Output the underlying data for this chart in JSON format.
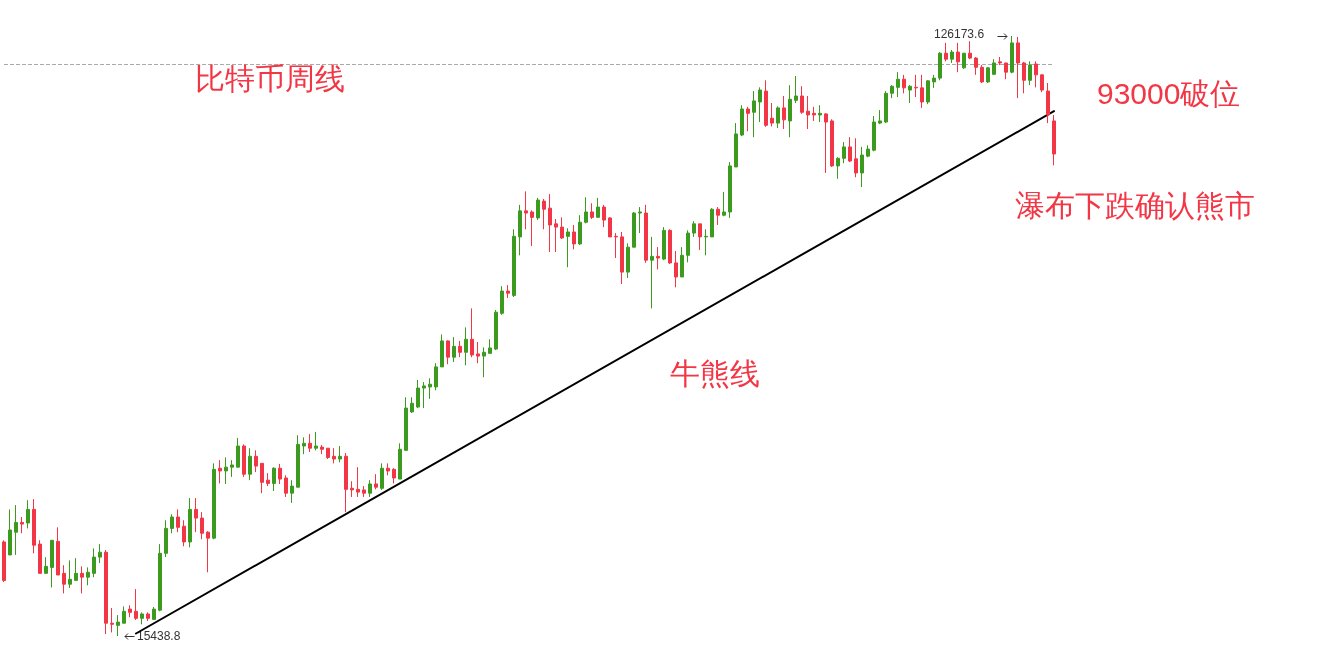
{
  "chart_data": {
    "type": "candlestick",
    "title": "比特币周线",
    "annotations": [
      "牛熊线",
      "93000破位",
      "瀑布下跌确认熊市",
      "126173.6",
      "15438.8"
    ],
    "colors": [
      "#f23645",
      "#3c9b1f",
      "#3c9b1f",
      "#f23645",
      "#3c9b1f",
      "#f23645",
      "#f23645",
      "#3c9b1f",
      "#3c9b1f",
      "#f23645",
      "#f23645",
      "#3c9b1f",
      "#3c9b1f",
      "#f23645",
      "#3c9b1f",
      "#3c9b1f",
      "#3c9b1f",
      "#f23645",
      "#f23645",
      "#3c9b1f",
      "#3c9b1f",
      "#f23645",
      "#f23645",
      "#3c9b1f",
      "#f23645",
      "#3c9b1f",
      "#3c9b1f",
      "#3c9b1f",
      "#3c9b1f",
      "#f23645",
      "#f23645",
      "#3c9b1f",
      "#f23645",
      "#f23645",
      "#f23645",
      "#3c9b1f",
      "#f23645",
      "#3c9b1f",
      "#3c9b1f",
      "#3c9b1f",
      "#f23645",
      "#3c9b1f",
      "#f23645",
      "#f23645",
      "#f23645",
      "#3c9b1f",
      "#f23645",
      "#f23645",
      "#3c9b1f",
      "#3c9b1f",
      "#3c9b1f",
      "#f23645",
      "#3c9b1f",
      "#f23645",
      "#f23645",
      "#f23645",
      "#3c9b1f",
      "#f23645",
      "#f23645",
      "#f23645",
      "#f23645",
      "#3c9b1f",
      "#f23645",
      "#3c9b1f",
      "#f23645",
      "#f23645",
      "#3c9b1f",
      "#3c9b1f",
      "#3c9b1f",
      "#3c9b1f",
      "#3c9b1f",
      "#3c9b1f",
      "#3c9b1f",
      "#3c9b1f",
      "#f23645",
      "#3c9b1f",
      "#f23645",
      "#3c9b1f",
      "#f23645",
      "#f23645",
      "#3c9b1f",
      "#3c9b1f",
      "#3c9b1f",
      "#3c9b1f",
      "#f23645",
      "#3c9b1f",
      "#3c9b1f",
      "#f23645",
      "#f23645",
      "#3c9b1f",
      "#f23645",
      "#f23645",
      "#f23645",
      "#f23645",
      "#3c9b1f",
      "#f23645",
      "#3c9b1f",
      "#3c9b1f",
      "#f23645",
      "#3c9b1f",
      "#f23645",
      "#f23645",
      "#f23645",
      "#f23645",
      "#3c9b1f",
      "#3c9b1f",
      "#3c9b1f",
      "#f23645",
      "#3c9b1f",
      "#f23645",
      "#3c9b1f",
      "#f23645",
      "#f23645",
      "#3c9b1f",
      "#3c9b1f",
      "#3c9b1f",
      "#f23645",
      "#3c9b1f",
      "#3c9b1f",
      "#f23645",
      "#3c9b1f",
      "#3c9b1f",
      "#3c9b1f",
      "#3c9b1f",
      "#f23645",
      "#3c9b1f",
      "#3c9b1f",
      "#f23645",
      "#f23645",
      "#3c9b1f",
      "#f23645",
      "#3c9b1f",
      "#3c9b1f",
      "#f23645",
      "#f23645",
      "#f23645",
      "#3c9b1f",
      "#f23645",
      "#f23645",
      "#3c9b1f",
      "#3c9b1f",
      "#f23645",
      "#f23645",
      "#3c9b1f",
      "#3c9b1f",
      "#3c9b1f",
      "#3c9b1f",
      "#3c9b1f",
      "#3c9b1f",
      "#3c9b1f",
      "#f23645",
      "#3c9b1f",
      "#f23645",
      "#f23645",
      "#3c9b1f",
      "#3c9b1f",
      "#3c9b1f",
      "#f23645",
      "#3c9b1f",
      "#f23645",
      "#3c9b1f",
      "#f23645",
      "#f23645",
      "#f23645",
      "#3c9b1f",
      "#3c9b1f",
      "#f23645",
      "#f23645",
      "#3c9b1f",
      "#f23645",
      "#f23645",
      "#3c9b1f",
      "#f23645",
      "#f23645",
      "#f23645",
      "#f23645"
    ],
    "categories": [
      null,
      null,
      null,
      null,
      null,
      null,
      null,
      null,
      null,
      null,
      null,
      null,
      null,
      null,
      null,
      null,
      null,
      null,
      null,
      null,
      null,
      null,
      null,
      null,
      null,
      null,
      null,
      null,
      null,
      null,
      null,
      null,
      null,
      null,
      null,
      null,
      null,
      null,
      null,
      null,
      null,
      null,
      null,
      null,
      null,
      null,
      null,
      null,
      null,
      null,
      null,
      null,
      null,
      null,
      null,
      null,
      null,
      null,
      null,
      null,
      null,
      null,
      null,
      null,
      null,
      null,
      null,
      null,
      null,
      null,
      null,
      null,
      null,
      null,
      null,
      null,
      null,
      null,
      null,
      null,
      null,
      null,
      null,
      null,
      null,
      null,
      null,
      null,
      null,
      null,
      null,
      null,
      null,
      null,
      null,
      null,
      null,
      null,
      null,
      null,
      null,
      null,
      null,
      null,
      null,
      null,
      null,
      null,
      null,
      null,
      null,
      null,
      null,
      null,
      null,
      null,
      null,
      null,
      null,
      null,
      null,
      null,
      null,
      null,
      null,
      null,
      null,
      null,
      null,
      null,
      null,
      null,
      null,
      null,
      null,
      null,
      null,
      null,
      null,
      null,
      null,
      null,
      null,
      null,
      null,
      null,
      null,
      null,
      null,
      null,
      null,
      null,
      null,
      null,
      null,
      null,
      null,
      null,
      null,
      null,
      null,
      null,
      null,
      null,
      null,
      null,
      null,
      null,
      null,
      null,
      null,
      null,
      null,
      null,
      null,
      null
    ],
    "ohlc": [
      [
        32800,
        33100,
        25400,
        25700
      ],
      [
        30400,
        38800,
        30400,
        35000
      ],
      [
        34600,
        39600,
        30400,
        36400
      ],
      [
        36400,
        37400,
        34400,
        36100
      ],
      [
        36300,
        40500,
        35300,
        38800
      ],
      [
        38800,
        40700,
        30700,
        32200
      ],
      [
        32400,
        33100,
        27000,
        27000
      ],
      [
        27000,
        30000,
        27000,
        28300
      ],
      [
        28100,
        33100,
        24400,
        33100
      ],
      [
        32900,
        35500,
        26700,
        26700
      ],
      [
        27000,
        28500,
        23300,
        25000
      ],
      [
        25000,
        29400,
        24300,
        25900
      ],
      [
        25700,
        29800,
        25700,
        27000
      ],
      [
        27000,
        28300,
        23300,
        26300
      ],
      [
        26300,
        28100,
        24800,
        27200
      ],
      [
        27000,
        31600,
        26300,
        30000
      ],
      [
        30000,
        32400,
        28900,
        30900
      ],
      [
        30900,
        31300,
        15800,
        17800
      ],
      [
        17800,
        20600,
        16100,
        17600
      ],
      [
        17400,
        19300,
        15438.8,
        18000
      ],
      [
        17800,
        20900,
        17800,
        20000
      ],
      [
        20400,
        21100,
        18900,
        19800
      ],
      [
        20000,
        24100,
        18400,
        18700
      ],
      [
        18700,
        19800,
        17600,
        19500
      ],
      [
        19500,
        19800,
        18200,
        18700
      ],
      [
        18500,
        20800,
        18400,
        20400
      ],
      [
        20200,
        32400,
        20000,
        30700
      ],
      [
        30700,
        36800,
        30000,
        35300
      ],
      [
        35300,
        37900,
        34400,
        37400
      ],
      [
        37400,
        38800,
        34600,
        35500
      ],
      [
        35700,
        36800,
        32000,
        32800
      ],
      [
        32800,
        40900,
        31800,
        38800
      ],
      [
        38800,
        40900,
        34600,
        37200
      ],
      [
        37200,
        38300,
        33300,
        34400
      ],
      [
        34600,
        34800,
        27200,
        33500
      ],
      [
        33500,
        47300,
        33300,
        46200
      ],
      [
        46400,
        47900,
        43600,
        45900
      ],
      [
        45900,
        48400,
        43500,
        46600
      ],
      [
        46600,
        47900,
        44800,
        47000
      ],
      [
        46600,
        52000,
        46600,
        50500
      ],
      [
        50500,
        50800,
        44800,
        45300
      ],
      [
        45300,
        50100,
        44200,
        48600
      ],
      [
        48600,
        49700,
        45700,
        46800
      ],
      [
        47300,
        47300,
        41800,
        43800
      ],
      [
        44200,
        45500,
        43100,
        43600
      ],
      [
        43600,
        46600,
        42200,
        46400
      ],
      [
        46400,
        47200,
        43500,
        44400
      ],
      [
        44600,
        45100,
        41100,
        41800
      ],
      [
        41800,
        44200,
        40000,
        43100
      ],
      [
        42900,
        52500,
        42900,
        50800
      ],
      [
        50500,
        52100,
        49000,
        51000
      ],
      [
        51000,
        52700,
        49400,
        50100
      ],
      [
        50100,
        53100,
        49700,
        50500
      ],
      [
        50300,
        50700,
        49000,
        49900
      ],
      [
        50100,
        50100,
        48100,
        48400
      ],
      [
        48600,
        50100,
        47300,
        48100
      ],
      [
        48100,
        50500,
        47500,
        48600
      ],
      [
        48600,
        49200,
        38300,
        42500
      ],
      [
        42700,
        44000,
        41100,
        42400
      ],
      [
        42500,
        46600,
        41100,
        42000
      ],
      [
        42400,
        43100,
        41100,
        41800
      ],
      [
        41800,
        44200,
        41100,
        43500
      ],
      [
        43500,
        45300,
        42500,
        42900
      ],
      [
        42700,
        47300,
        42400,
        46400
      ],
      [
        46400,
        47300,
        45100,
        45900
      ],
      [
        46200,
        46400,
        43600,
        44600
      ],
      [
        44400,
        51000,
        44400,
        49900
      ],
      [
        49700,
        59500,
        49700,
        57500
      ],
      [
        56800,
        59500,
        56600,
        58400
      ],
      [
        57700,
        62700,
        57500,
        61200
      ],
      [
        61200,
        62300,
        57500,
        61600
      ],
      [
        61400,
        63000,
        59200,
        61900
      ],
      [
        61400,
        65800,
        60800,
        65100
      ],
      [
        65100,
        71100,
        65100,
        69900
      ],
      [
        69900,
        70000,
        65600,
        66900
      ],
      [
        66900,
        70600,
        66000,
        68900
      ],
      [
        68900,
        69900,
        66900,
        67800
      ],
      [
        67800,
        72400,
        65400,
        70200
      ],
      [
        70200,
        75900,
        66900,
        67300
      ],
      [
        67500,
        69700,
        65800,
        67100
      ],
      [
        67100,
        68700,
        63200,
        67800
      ],
      [
        67600,
        70200,
        67600,
        68600
      ],
      [
        68400,
        75600,
        68200,
        75200
      ],
      [
        75000,
        80000,
        74700,
        79100
      ],
      [
        79100,
        80200,
        77800,
        78700
      ],
      [
        78300,
        90500,
        78000,
        89200
      ],
      [
        89100,
        95000,
        85700,
        93900
      ],
      [
        93900,
        97500,
        90500,
        93500
      ],
      [
        93700,
        94000,
        87400,
        92700
      ],
      [
        92600,
        96300,
        92200,
        95900
      ],
      [
        95700,
        96100,
        90500,
        94200
      ],
      [
        94400,
        97000,
        86300,
        91300
      ],
      [
        91500,
        92400,
        86300,
        90900
      ],
      [
        90900,
        92700,
        88700,
        88900
      ],
      [
        89200,
        90700,
        83500,
        90000
      ],
      [
        90000,
        91300,
        86800,
        87800
      ],
      [
        87800,
        93100,
        87600,
        91800
      ],
      [
        91800,
        96400,
        91600,
        93700
      ],
      [
        93700,
        95300,
        92400,
        92700
      ],
      [
        92700,
        96300,
        92700,
        94600
      ],
      [
        94600,
        95000,
        90900,
        92200
      ],
      [
        92600,
        92700,
        89100,
        89100
      ],
      [
        89200,
        89800,
        85200,
        89100
      ],
      [
        89100,
        90000,
        80400,
        82600
      ],
      [
        82600,
        87900,
        81500,
        87200
      ],
      [
        87200,
        93700,
        87200,
        93500
      ],
      [
        93500,
        94600,
        89800,
        93700
      ],
      [
        93500,
        95000,
        84300,
        84800
      ],
      [
        84800,
        89100,
        75900,
        85500
      ],
      [
        85500,
        87200,
        83100,
        85200
      ],
      [
        85000,
        90900,
        84800,
        90300
      ],
      [
        90300,
        90500,
        84100,
        84300
      ],
      [
        84300,
        86500,
        79800,
        81700
      ],
      [
        81700,
        87200,
        81700,
        85700
      ],
      [
        85700,
        90300,
        84400,
        89800
      ],
      [
        89800,
        92000,
        89100,
        91500
      ],
      [
        91500,
        91500,
        86700,
        89100
      ],
      [
        89100,
        90500,
        85700,
        89200
      ],
      [
        89100,
        94400,
        89100,
        94200
      ],
      [
        94200,
        94600,
        91300,
        93100
      ],
      [
        93100,
        97400,
        92900,
        93700
      ],
      [
        93700,
        102900,
        92600,
        102200
      ],
      [
        102000,
        110100,
        102000,
        108100
      ],
      [
        107900,
        113400,
        107700,
        112700
      ],
      [
        112700,
        113100,
        108600,
        111900
      ],
      [
        112100,
        116000,
        107500,
        114200
      ],
      [
        114000,
        116700,
        110300,
        116200
      ],
      [
        116000,
        118000,
        109400,
        109700
      ],
      [
        111000,
        113800,
        109500,
        110100
      ],
      [
        110100,
        113200,
        109200,
        112900
      ],
      [
        112900,
        115100,
        109000,
        110700
      ],
      [
        110500,
        117100,
        107500,
        114500
      ],
      [
        114300,
        118800,
        113800,
        115100
      ],
      [
        115100,
        116900,
        111800,
        112100
      ],
      [
        112300,
        115100,
        109000,
        111600
      ],
      [
        111900,
        113100,
        110500,
        111600
      ],
      [
        111600,
        113400,
        110300,
        111900
      ],
      [
        111800,
        111900,
        100900,
        110300
      ],
      [
        110500,
        110800,
        102000,
        102200
      ],
      [
        102200,
        103800,
        99800,
        103600
      ],
      [
        103600,
        106600,
        102700,
        105700
      ],
      [
        105700,
        107500,
        102900,
        103100
      ],
      [
        103500,
        107300,
        100100,
        100900
      ],
      [
        100900,
        105700,
        98300,
        104200
      ],
      [
        104000,
        106000,
        103800,
        105300
      ],
      [
        105100,
        111400,
        104900,
        110300
      ],
      [
        110100,
        112500,
        109900,
        110500
      ],
      [
        110300,
        116000,
        110100,
        115600
      ],
      [
        115600,
        117100,
        114700,
        116900
      ],
      [
        116700,
        119500,
        114900,
        118200
      ],
      [
        118200,
        119000,
        115600,
        116600
      ],
      [
        116200,
        117100,
        113800,
        116900
      ],
      [
        116700,
        119000,
        114900,
        116600
      ],
      [
        116600,
        119000,
        112900,
        114000
      ],
      [
        114000,
        118000,
        113600,
        117900
      ],
      [
        117700,
        119000,
        116600,
        118400
      ],
      [
        118400,
        123200,
        118000,
        123000
      ],
      [
        123000,
        124900,
        121500,
        121900
      ],
      [
        121900,
        123600,
        121200,
        123200
      ],
      [
        123200,
        124900,
        119500,
        121400
      ],
      [
        120300,
        123000,
        120100,
        123000
      ],
      [
        123000,
        125200,
        121900,
        122100
      ],
      [
        122100,
        122300,
        119000,
        120400
      ],
      [
        120400,
        120800,
        117500,
        117700
      ],
      [
        117700,
        120400,
        117500,
        120300
      ],
      [
        119100,
        121900,
        119000,
        121200
      ],
      [
        121400,
        122300,
        120800,
        121200
      ],
      [
        121200,
        121200,
        118200,
        119500
      ],
      [
        119500,
        126173.6,
        119300,
        124900
      ],
      [
        124900,
        126000,
        114700,
        121200
      ],
      [
        121200,
        121400,
        115600,
        118000
      ],
      [
        118000,
        121500,
        117100,
        120800
      ],
      [
        121000,
        121500,
        116700,
        119000
      ],
      [
        119000,
        119100,
        115800,
        116200
      ],
      [
        116000,
        117500,
        110100,
        111600
      ],
      [
        110500,
        111600,
        102300,
        104400
      ]
    ],
    "series": [
      {
        "type": "line",
        "color": "#000000",
        "values": [
          null,
          null,
          null,
          null,
          null,
          null,
          null,
          null,
          null,
          null,
          null,
          null,
          null,
          null,
          null,
          null,
          null,
          null,
          null,
          null,
          null,
          null,
          15900,
          null,
          null,
          null,
          null,
          null,
          null,
          null,
          null,
          null,
          null,
          null,
          null,
          null,
          null,
          null,
          null,
          null,
          null,
          null,
          null,
          null,
          null,
          null,
          null,
          null,
          null,
          null,
          null,
          null,
          null,
          null,
          null,
          null,
          null,
          null,
          null,
          null,
          null,
          null,
          null,
          null,
          null,
          null,
          null,
          null,
          null,
          null,
          null,
          null,
          null,
          null,
          null,
          null,
          null,
          null,
          null,
          null,
          null,
          null,
          null,
          null,
          null,
          null,
          null,
          null,
          null,
          null,
          null,
          null,
          null,
          null,
          null,
          null,
          null,
          null,
          null,
          null,
          null,
          null,
          null,
          null,
          null,
          null,
          null,
          null,
          null,
          null,
          null,
          null,
          null,
          null,
          null,
          null,
          null,
          null,
          null,
          null,
          null,
          null,
          null,
          null,
          null,
          null,
          null,
          null,
          null,
          null,
          null,
          null,
          null,
          null,
          null,
          null,
          null,
          null,
          null,
          null,
          null,
          null,
          null,
          null,
          null,
          null,
          null,
          null,
          null,
          null,
          null,
          null,
          null,
          null,
          null,
          null,
          null,
          null,
          null,
          null,
          null,
          null,
          null,
          null,
          null,
          null,
          null,
          null,
          null,
          null,
          null,
          null,
          null,
          null,
          null,
          112300
        ]
      }
    ],
    "ref_lines": [
      {
        "axis": "y",
        "value": 121000,
        "color": "#aaaaaa",
        "line_style": "dashed"
      }
    ]
  }
}
